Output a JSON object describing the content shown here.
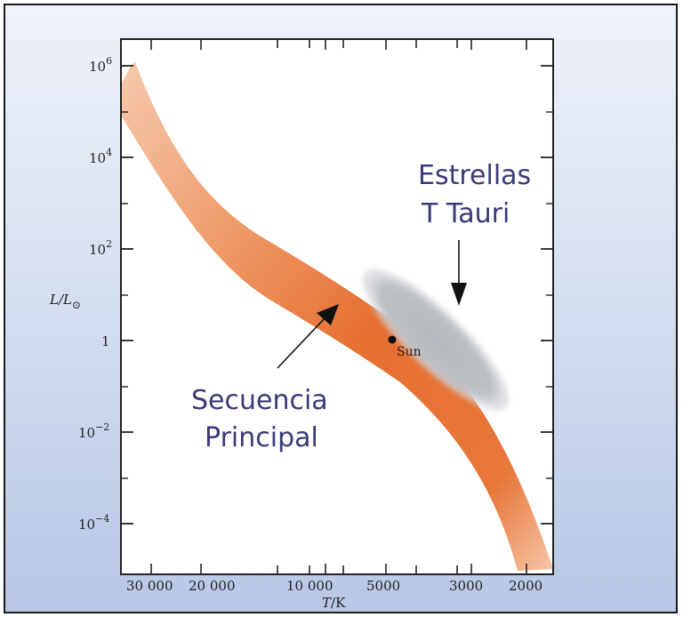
{
  "chart_data": {
    "type": "scatter",
    "title": "",
    "x_axis": {
      "label_main": "T",
      "label_unit": "/K",
      "scale": "log-reversed",
      "ticks": [
        "30 000",
        "20 000",
        "10 000",
        "5000",
        "3000",
        "2000"
      ]
    },
    "y_axis": {
      "label_main": "L/L",
      "label_sub": "⊙",
      "scale": "log",
      "ticks": [
        {
          "base": "10",
          "exp": "6"
        },
        {
          "base": "10",
          "exp": "4"
        },
        {
          "base": "10",
          "exp": "2"
        },
        {
          "base": "1",
          "exp": ""
        },
        {
          "base": "10",
          "exp": "−2"
        },
        {
          "base": "10",
          "exp": "−4"
        }
      ]
    },
    "regions": [
      {
        "name": "Secuencia Principal",
        "color": "#e8773a"
      },
      {
        "name": "Estrellas T Tauri",
        "color": "#b9bcc2"
      }
    ],
    "points": [
      {
        "label": "Sun",
        "x": 5800,
        "y": 1
      }
    ],
    "annotations": {
      "main_sequence": [
        "Secuencia",
        "Principal"
      ],
      "t_tauri": [
        "Estrellas",
        "T Tauri"
      ]
    }
  }
}
